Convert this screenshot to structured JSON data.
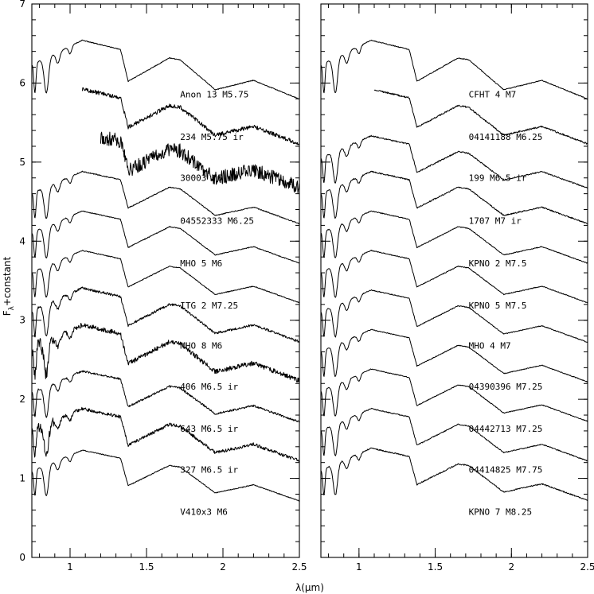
{
  "chart_data": {
    "type": "line",
    "ylabel": "F",
    "ylabel_sub": "λ",
    "ylabel_suffix": "+constant",
    "xlabel": "λ(μm)",
    "panels": [
      {
        "name": "left",
        "xlim": [
          0.75,
          2.5
        ],
        "ylim": [
          0,
          7
        ],
        "xticks": [
          1,
          1.5,
          2,
          2.5
        ],
        "xtick_labels": [
          "1",
          "1.5",
          "2",
          "2.5"
        ],
        "yticks": [
          0,
          1,
          2,
          3,
          4,
          5,
          6,
          7
        ],
        "ytick_labels": [
          "0",
          "1",
          "2",
          "3",
          "4",
          "5",
          "6",
          "7"
        ],
        "series": [
          {
            "name": "Anon 13 M5.75",
            "offset": 5.55,
            "amp": 1.18,
            "start": 0.75,
            "noise": 0.01,
            "label_x": 1.72,
            "label_y": 5.82
          },
          {
            "name": "234 M5.75 ir",
            "offset": 5.0,
            "amp": 1.1,
            "start": 1.08,
            "noise": 0.05,
            "label_x": 1.72,
            "label_y": 5.28
          },
          {
            "name": "30003 M6 ir",
            "offset": 4.45,
            "amp": 1.1,
            "start": 1.2,
            "noise": 0.18,
            "label_x": 1.72,
            "label_y": 4.76
          },
          {
            "name": "04552333 M6.25",
            "offset": 4.0,
            "amp": 1.05,
            "start": 0.75,
            "noise": 0.012,
            "label_x": 1.72,
            "label_y": 4.22
          },
          {
            "name": "MHO 5 M6",
            "offset": 3.5,
            "amp": 1.05,
            "start": 0.75,
            "noise": 0.01,
            "label_x": 1.72,
            "label_y": 3.68
          },
          {
            "name": "ITG 2 M7.25",
            "offset": 3.0,
            "amp": 1.05,
            "start": 0.75,
            "noise": 0.01,
            "label_x": 1.72,
            "label_y": 3.15
          },
          {
            "name": "MHO 8 M6",
            "offset": 2.5,
            "amp": 1.08,
            "start": 0.75,
            "noise": 0.03,
            "label_x": 1.72,
            "label_y": 2.64
          },
          {
            "name": "406 M6.5 ir",
            "offset": 2.0,
            "amp": 1.12,
            "start": 0.75,
            "noise": 0.06,
            "label_x": 1.72,
            "label_y": 2.12
          },
          {
            "name": "643 M6.5 ir",
            "offset": 1.5,
            "amp": 1.02,
            "start": 0.75,
            "noise": 0.025,
            "label_x": 1.72,
            "label_y": 1.59
          },
          {
            "name": "327 M6.5 ir",
            "offset": 1.0,
            "amp": 1.05,
            "start": 0.75,
            "noise": 0.04,
            "label_x": 1.72,
            "label_y": 1.07
          },
          {
            "name": "V410x3 M6",
            "offset": 0.5,
            "amp": 1.02,
            "start": 0.75,
            "noise": 0.01,
            "label_x": 1.72,
            "label_y": 0.54
          }
        ]
      },
      {
        "name": "right",
        "xlim": [
          0.75,
          2.5
        ],
        "ylim": [
          0,
          7
        ],
        "xticks": [
          1,
          1.5,
          2,
          2.5
        ],
        "xtick_labels": [
          "1",
          "1.5",
          "2",
          "2.5"
        ],
        "yticks": [
          0,
          1,
          2,
          3,
          4,
          5,
          6,
          7
        ],
        "ytick_labels": [],
        "series": [
          {
            "name": "CFHT 4 M7",
            "offset": 5.55,
            "amp": 1.18,
            "start": 0.75,
            "noise": 0.01,
            "label_x": 1.72,
            "label_y": 5.82
          },
          {
            "name": "04141188 M6.25",
            "offset": 5.0,
            "amp": 1.1,
            "start": 1.1,
            "noise": 0.02,
            "label_x": 1.72,
            "label_y": 5.28
          },
          {
            "name": "199 M6.5 ir",
            "offset": 4.45,
            "amp": 1.05,
            "start": 0.75,
            "noise": 0.015,
            "label_x": 1.72,
            "label_y": 4.76
          },
          {
            "name": "1707 M7 ir",
            "offset": 4.0,
            "amp": 1.05,
            "start": 0.75,
            "noise": 0.015,
            "label_x": 1.72,
            "label_y": 4.22
          },
          {
            "name": "KPNO 2 M7.5",
            "offset": 3.5,
            "amp": 1.05,
            "start": 0.75,
            "noise": 0.01,
            "label_x": 1.72,
            "label_y": 3.68
          },
          {
            "name": "KPNO 5 M7.5",
            "offset": 3.0,
            "amp": 1.05,
            "start": 0.75,
            "noise": 0.01,
            "label_x": 1.72,
            "label_y": 3.15
          },
          {
            "name": "MHO 4 M7",
            "offset": 2.5,
            "amp": 1.05,
            "start": 0.75,
            "noise": 0.01,
            "label_x": 1.72,
            "label_y": 2.64
          },
          {
            "name": "04390396 M7.25",
            "offset": 2.0,
            "amp": 1.05,
            "start": 0.75,
            "noise": 0.01,
            "label_x": 1.72,
            "label_y": 2.12
          },
          {
            "name": "04442713 M7.25",
            "offset": 1.5,
            "amp": 1.05,
            "start": 0.75,
            "noise": 0.01,
            "label_x": 1.72,
            "label_y": 1.59
          },
          {
            "name": "04414825 M7.75",
            "offset": 1.0,
            "amp": 1.05,
            "start": 0.75,
            "noise": 0.012,
            "label_x": 1.72,
            "label_y": 1.07
          },
          {
            "name": "KPNO 7 M8.25",
            "offset": 0.5,
            "amp": 1.05,
            "start": 0.75,
            "noise": 0.015,
            "label_x": 1.72,
            "label_y": 0.54
          }
        ]
      }
    ]
  }
}
